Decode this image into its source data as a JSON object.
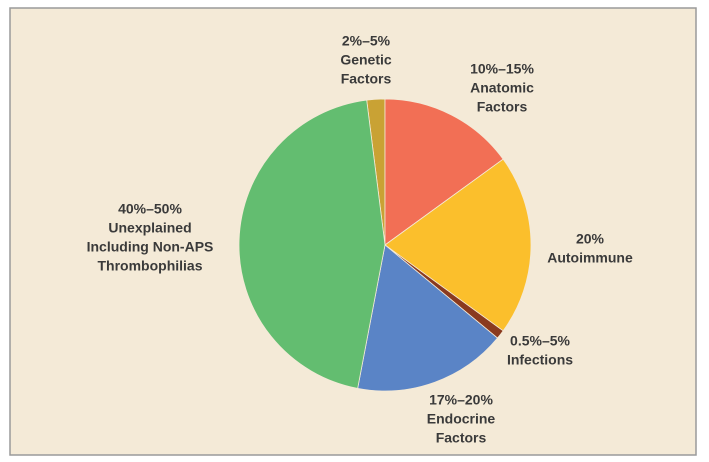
{
  "chart_data": {
    "type": "pie",
    "categories": [
      [
        "Genetic",
        "Factors"
      ],
      [
        "Anatomic",
        "Factors"
      ],
      [
        "Autoimmune"
      ],
      [
        "Infections"
      ],
      [
        "Endocrine",
        "Factors"
      ],
      [
        "Unexplained",
        "Including Non-APS",
        "Thrombophilias"
      ]
    ],
    "values": [
      2,
      15,
      20,
      1,
      17,
      45
    ],
    "value_labels": [
      "2%–5%",
      "10%–15%",
      "20%",
      "0.5%–5%",
      "17%–20%",
      "40%–50%"
    ],
    "colors": [
      "#c9a234",
      "#f26f55",
      "#fbbf2c",
      "#8a3a1f",
      "#5a84c6",
      "#63bd70"
    ]
  }
}
